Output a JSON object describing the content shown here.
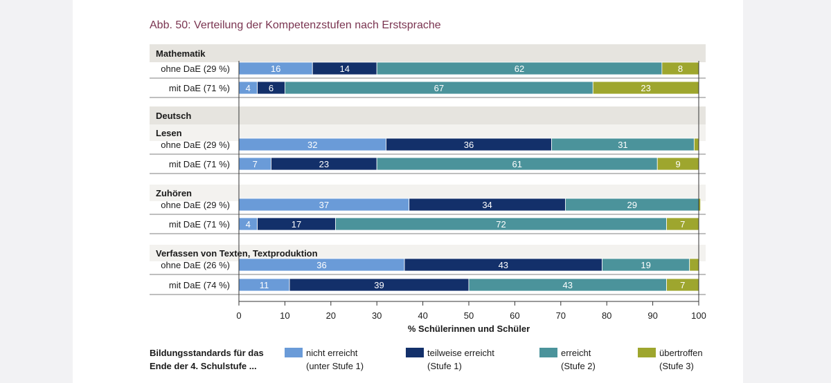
{
  "title": "Abb. 50: Verteilung der Kompetenzstufen nach Erstsprache",
  "chart_data": {
    "type": "bar",
    "orientation": "horizontal-stacked-100",
    "title": "Abb. 50: Verteilung der Kompetenzstufen nach Erstsprache",
    "xlabel": "% Schülerinnen und Schüler",
    "xlim": [
      0,
      100
    ],
    "xticks": [
      "0",
      "10",
      "20",
      "30",
      "40",
      "50",
      "60",
      "70",
      "80",
      "90",
      "100"
    ],
    "series": [
      {
        "name": "nicht erreicht",
        "sub": "(unter Stufe 1)",
        "color": "#6a9bd8"
      },
      {
        "name": "teilweise erreicht",
        "sub": "(Stufe 1)",
        "color": "#13306a"
      },
      {
        "name": "erreicht",
        "sub": "(Stufe 2)",
        "color": "#4b939b"
      },
      {
        "name": "übertroffen",
        "sub": "(Stufe 3)",
        "color": "#9ea62e"
      }
    ],
    "groups": [
      {
        "header": "Mathematik",
        "level": 1,
        "rows": [
          {
            "label": "ohne DaE (29 %)",
            "values": [
              16,
              14,
              62,
              8
            ]
          },
          {
            "label": "mit DaE (71 %)",
            "values": [
              4,
              6,
              67,
              23
            ]
          }
        ]
      },
      {
        "header": "Deutsch",
        "level": 1,
        "rows": []
      },
      {
        "header": "Lesen",
        "level": 2,
        "rows": [
          {
            "label": "ohne DaE (29 %)",
            "values": [
              32,
              36,
              31,
              1
            ]
          },
          {
            "label": "mit DaE (71 %)",
            "values": [
              7,
              23,
              61,
              9
            ]
          }
        ]
      },
      {
        "header": "Zuhören",
        "level": 2,
        "rows": [
          {
            "label": "ohne DaE (29 %)",
            "values": [
              37,
              34,
              29,
              0.4
            ]
          },
          {
            "label": "mit DaE (71 %)",
            "values": [
              4,
              17,
              72,
              7
            ]
          }
        ]
      },
      {
        "header": "Verfassen von Texten, Textproduktion",
        "level": 2,
        "rows": [
          {
            "label": "ohne DaE (26 %)",
            "values": [
              36,
              43,
              19,
              2
            ]
          },
          {
            "label": "mit DaE (74 %)",
            "values": [
              11,
              39,
              43,
              7
            ]
          }
        ]
      }
    ]
  },
  "legend": {
    "heading_line1": "Bildungsstandards für das",
    "heading_line2": "Ende der 4. Schulstufe ..."
  },
  "colors": {
    "title": "#7a3450",
    "header_level1": "#e6e4df",
    "header_level2": "#f3f2ef"
  }
}
